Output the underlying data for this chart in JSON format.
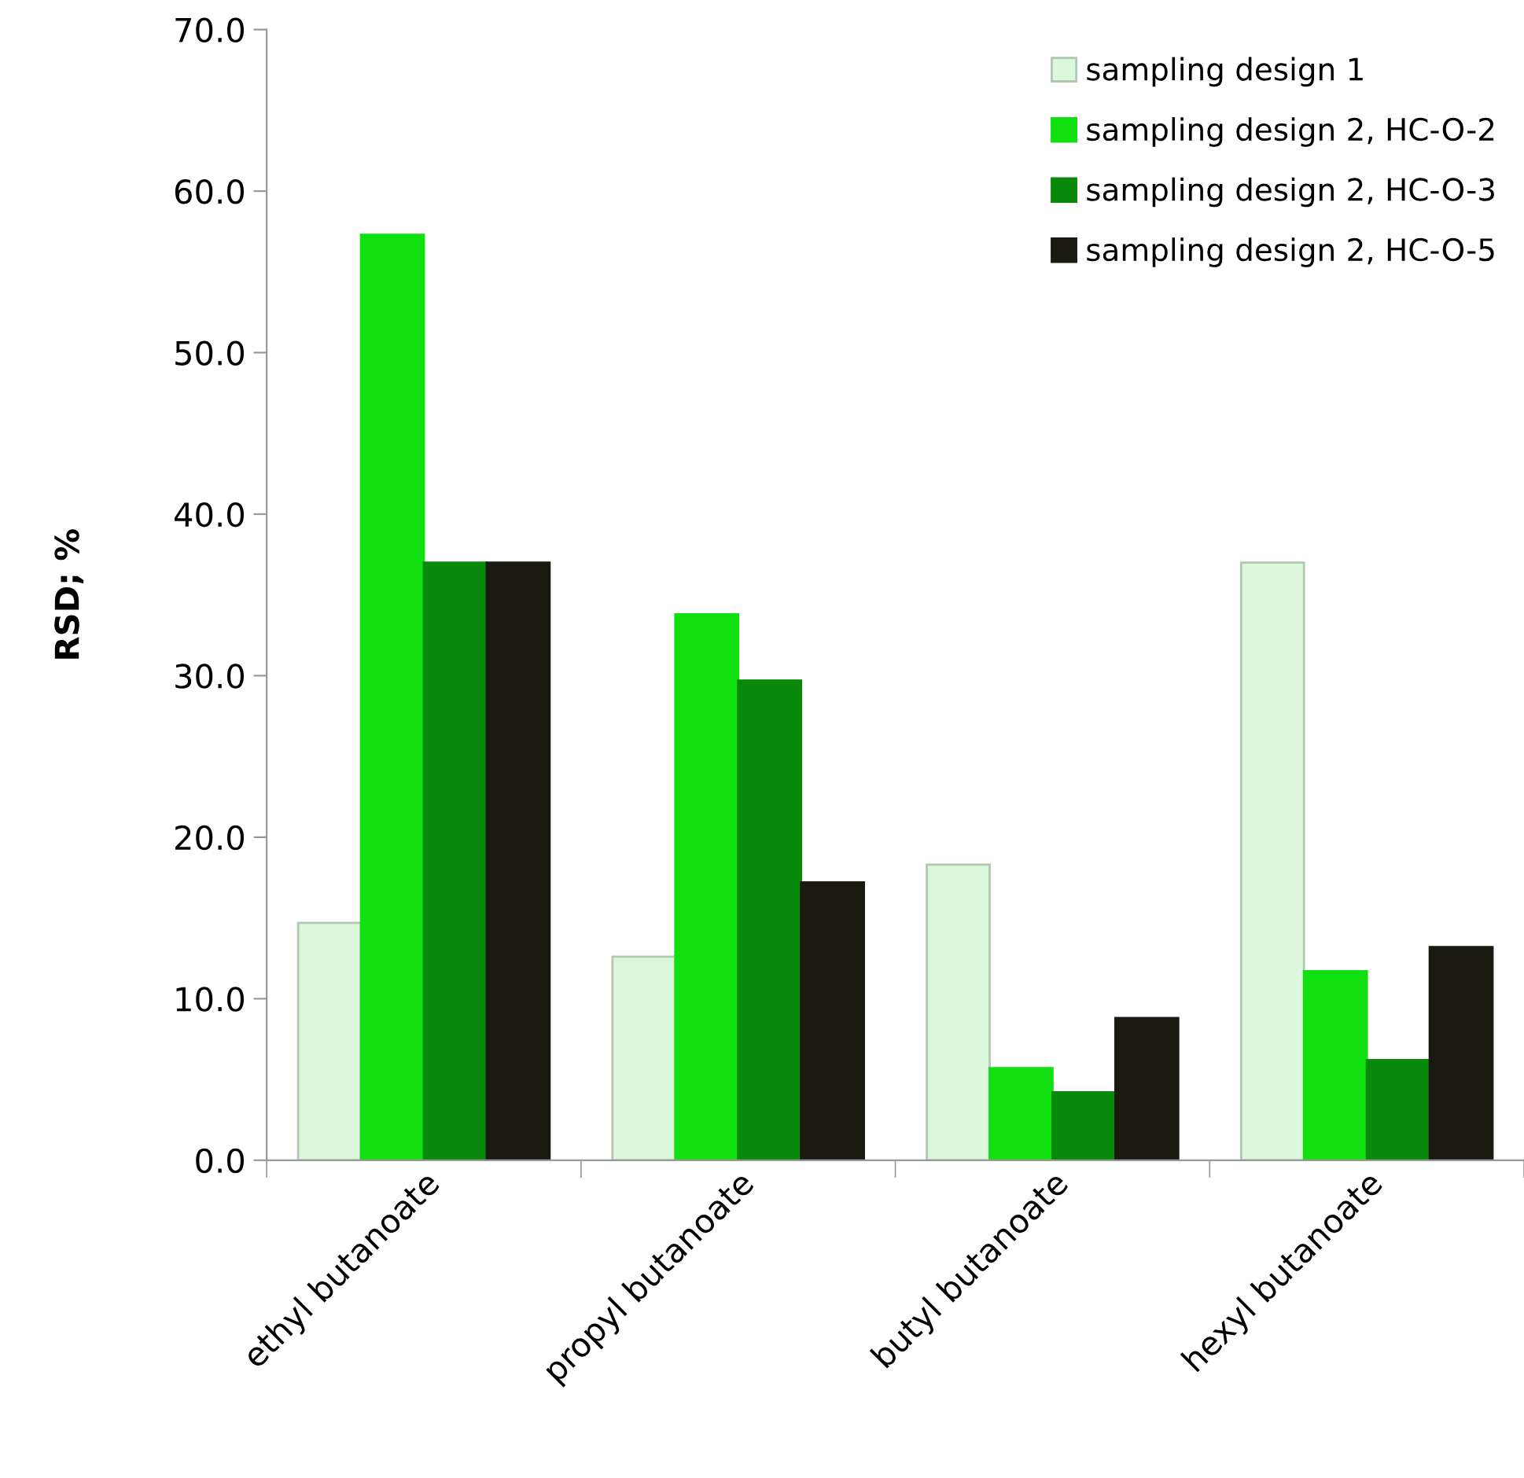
{
  "chart_data": {
    "type": "bar",
    "ylabel": "RSD; %",
    "categories": [
      "ethyl butanoate",
      "propyl butanoate",
      "butyl butanoate",
      "hexyl butanoate"
    ],
    "series": [
      {
        "name": "sampling design 1",
        "color": "#dcf8dc",
        "values": [
          14.7,
          12.6,
          18.3,
          37.0
        ]
      },
      {
        "name": "sampling design 2, HC-O-2",
        "color": "#10e010",
        "values": [
          57.3,
          33.8,
          5.7,
          11.7
        ]
      },
      {
        "name": "sampling design 2, HC-O-3",
        "color": "#0a8a0a",
        "values": [
          37.0,
          29.7,
          4.2,
          6.2
        ]
      },
      {
        "name": "sampling design 2, HC-O-5",
        "color": "#1a1a12",
        "values": [
          37.0,
          17.2,
          8.8,
          13.2
        ]
      }
    ],
    "ylim": [
      0,
      70
    ],
    "yticks": [
      {
        "value": 0,
        "label": "0.0"
      },
      {
        "value": 10,
        "label": "10.0"
      },
      {
        "value": 20,
        "label": "20.0"
      },
      {
        "value": 30,
        "label": "30.0"
      },
      {
        "value": 40,
        "label": "40.0"
      },
      {
        "value": 50,
        "label": "50.0"
      },
      {
        "value": 60,
        "label": "60.0"
      },
      {
        "value": 70,
        "label": "70.0"
      }
    ],
    "grid": false,
    "legend": "top right"
  }
}
